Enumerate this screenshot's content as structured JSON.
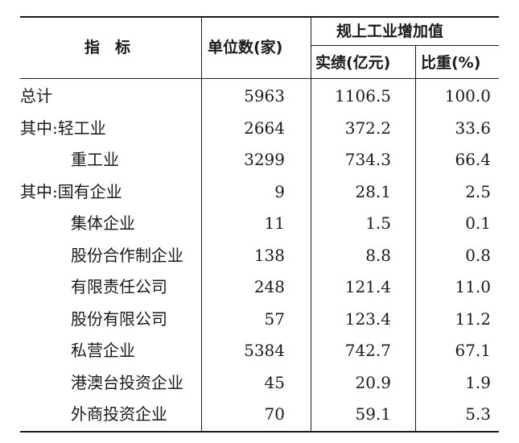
{
  "table": {
    "headers": {
      "indicator": "指　标",
      "units": "单位数(家)",
      "added_value": "规上工业增加值",
      "actual": "实绩(亿元)",
      "share": "比重(%)"
    },
    "rows": [
      {
        "label": "总计",
        "units": "5963",
        "actual": "1106.5",
        "share": "100.0"
      },
      {
        "label": "其中:轻工业",
        "units": "2664",
        "actual": "372.2",
        "share": "33.6"
      },
      {
        "label": "重工业",
        "units": "3299",
        "actual": "734.3",
        "share": "66.4"
      },
      {
        "label": "其中:国有企业",
        "units": "9",
        "actual": "28.1",
        "share": "2.5"
      },
      {
        "label": "集体企业",
        "units": "11",
        "actual": "1.5",
        "share": "0.1"
      },
      {
        "label": "股份合作制企业",
        "units": "138",
        "actual": "8.8",
        "share": "0.8"
      },
      {
        "label": "有限责任公司",
        "units": "248",
        "actual": "121.4",
        "share": "11.0"
      },
      {
        "label": "股份有限公司",
        "units": "57",
        "actual": "123.4",
        "share": "11.2"
      },
      {
        "label": "私营企业",
        "units": "5384",
        "actual": "742.7",
        "share": "67.1"
      },
      {
        "label": "港澳台投资企业",
        "units": "45",
        "actual": "20.9",
        "share": "1.9"
      },
      {
        "label": "外商投资企业",
        "units": "70",
        "actual": "59.1",
        "share": "5.3"
      }
    ]
  }
}
